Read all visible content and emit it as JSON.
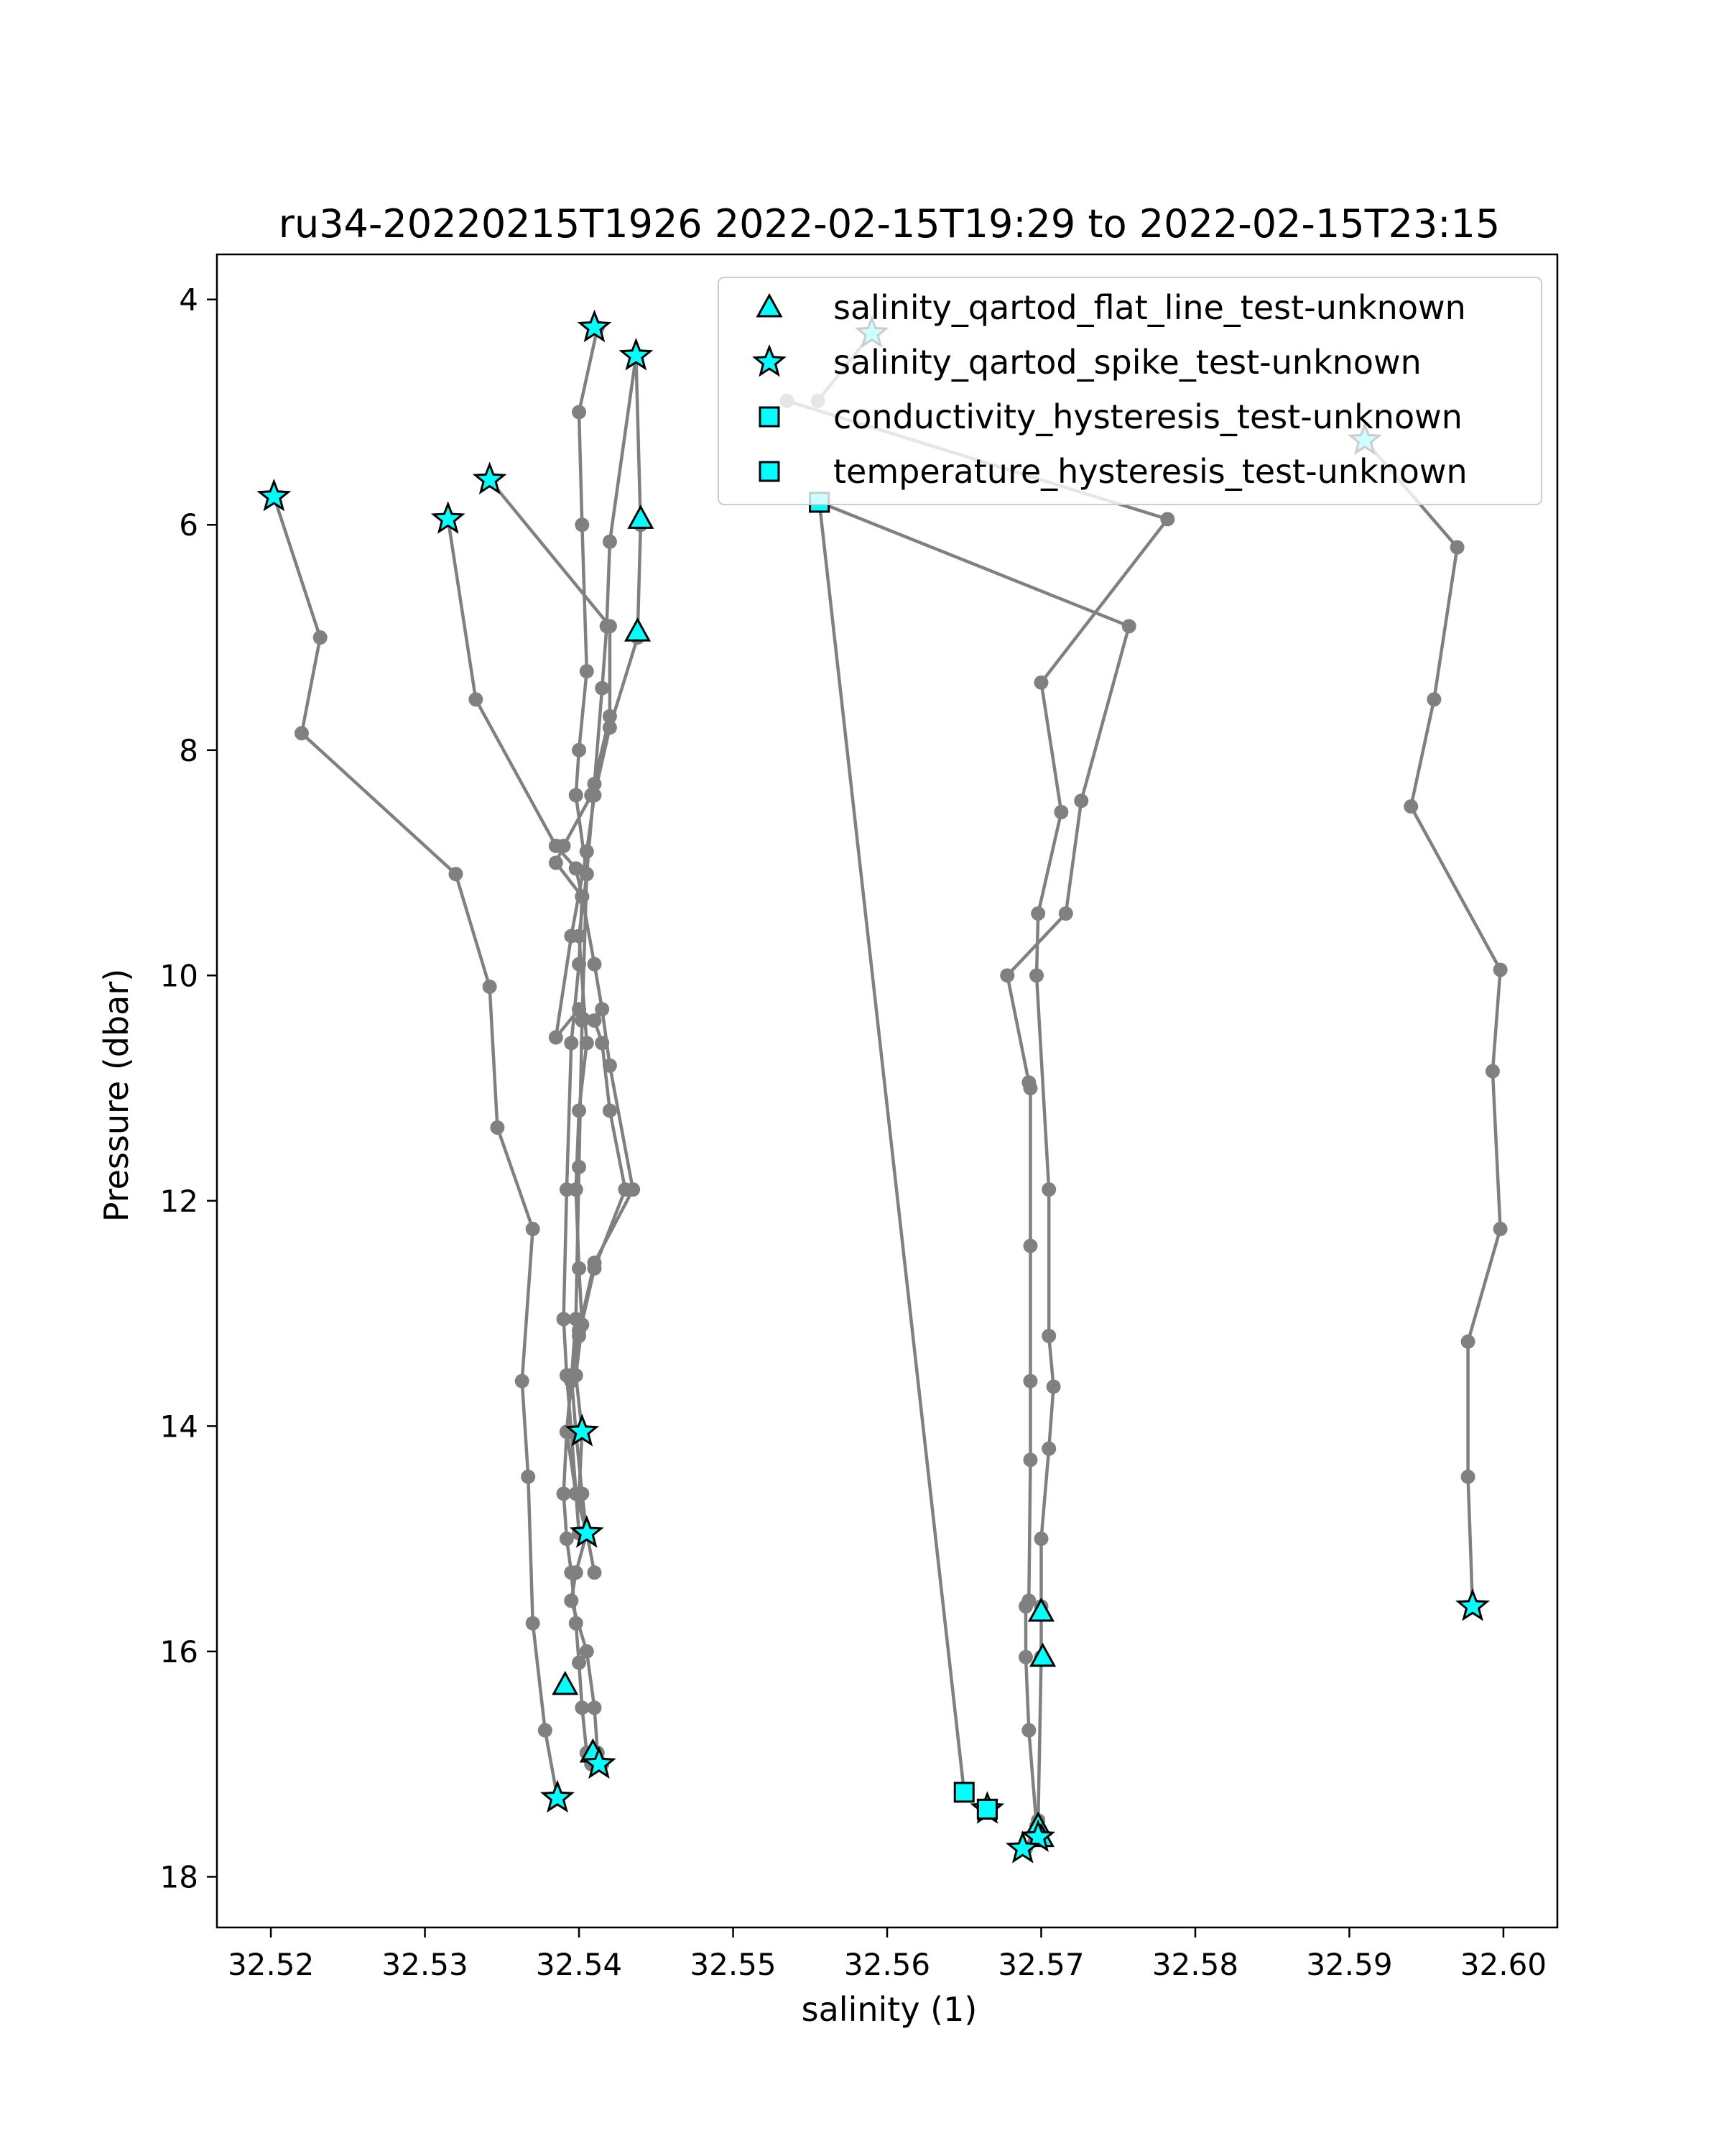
{
  "chart_data": {
    "type": "scatter",
    "title": "ru34-20220215T1926 2022-02-15T19:29 to 2022-02-15T23:15",
    "xlabel": "salinity (1)",
    "ylabel": "Pressure (dbar)",
    "xlim": [
      32.5165,
      32.6035
    ],
    "ylim": [
      18.45,
      3.6
    ],
    "y_inverted": true,
    "grid": false,
    "legend_position": "upper-right",
    "x_ticks": [
      "32.52",
      "32.53",
      "32.54",
      "32.55",
      "32.56",
      "32.57",
      "32.58",
      "32.59",
      "32.60"
    ],
    "y_ticks": [
      "4",
      "6",
      "8",
      "10",
      "12",
      "14",
      "16",
      "18"
    ],
    "profile_color": "#808080",
    "marker_color": "#00ffff",
    "profiles": [
      {
        "x": [
          32.5412,
          32.54,
          32.5402,
          32.5405,
          32.54,
          32.5398,
          32.5405,
          32.54,
          32.5405,
          32.54,
          32.5398,
          32.54,
          32.5402,
          32.5398,
          32.5402,
          32.54,
          32.5405,
          32.5398,
          32.5395,
          32.5405,
          32.541,
          32.5412,
          32.5415
        ],
        "y": [
          4.25,
          5.0,
          6.0,
          7.3,
          8.0,
          8.4,
          9.1,
          9.65,
          10.6,
          11.2,
          11.9,
          12.6,
          13.1,
          13.55,
          14.05,
          14.6,
          14.95,
          15.3,
          15.55,
          16.0,
          16.5,
          16.9,
          17.0
        ]
      },
      {
        "x": [
          32.5437,
          32.542,
          32.5418,
          32.5415,
          32.541,
          32.5405,
          32.5402,
          32.54,
          32.5398,
          32.5395,
          32.5392,
          32.539,
          32.5392,
          32.5395,
          32.5398,
          32.54,
          32.5402,
          32.5405,
          32.5408
        ],
        "y": [
          4.5,
          6.15,
          6.9,
          7.45,
          8.3,
          9.1,
          10.4,
          11.7,
          13.05,
          13.6,
          14.05,
          14.6,
          15.0,
          15.3,
          15.75,
          16.1,
          16.5,
          16.9,
          17.0
        ]
      },
      {
        "x": [
          32.5437,
          32.544,
          32.5438,
          32.542,
          32.541,
          32.5405,
          32.5395,
          32.5385,
          32.54,
          32.541,
          32.5415,
          32.542,
          32.543,
          32.541,
          32.54,
          32.5395,
          32.5392,
          32.5398,
          32.5405
        ],
        "y": [
          4.5,
          6.0,
          7.0,
          7.8,
          8.4,
          8.9,
          9.65,
          10.55,
          10.3,
          10.4,
          10.6,
          11.2,
          11.9,
          12.6,
          13.2,
          13.6,
          14.05,
          14.6,
          14.95
        ]
      },
      {
        "x": [
          32.5342,
          32.542,
          32.542,
          32.5408,
          32.539,
          32.5385,
          32.5402,
          32.541,
          32.5415,
          32.542,
          32.5435,
          32.541,
          32.54,
          32.5395,
          32.5398,
          32.5402,
          32.5405,
          32.541
        ],
        "y": [
          5.6,
          6.9,
          7.7,
          8.4,
          8.85,
          9.0,
          9.3,
          9.9,
          10.3,
          10.8,
          11.9,
          12.55,
          13.15,
          13.55,
          14.05,
          14.6,
          14.95,
          15.3
        ]
      },
      {
        "x": [
          32.5315,
          32.5333,
          32.5385,
          32.5398,
          32.5402,
          32.54,
          32.5395,
          32.5392,
          32.539,
          32.5392,
          32.5395,
          32.54
        ],
        "y": [
          5.95,
          7.55,
          8.85,
          9.05,
          9.3,
          9.9,
          10.6,
          11.9,
          13.05,
          13.55,
          14.05,
          14.95
        ]
      },
      {
        "x": [
          32.5202,
          32.5232,
          32.522,
          32.532,
          32.5342,
          32.5347,
          32.537,
          32.5363,
          32.5367,
          32.537,
          32.5378,
          32.5386
        ],
        "y": [
          5.75,
          7.0,
          7.85,
          9.1,
          10.1,
          11.35,
          12.25,
          13.6,
          14.45,
          15.75,
          16.7,
          17.3
        ]
      },
      {
        "x": [
          32.5556,
          32.565
        ],
        "y": [
          5.8,
          17.25
        ]
      },
      {
        "x": [
          32.5556,
          32.5757,
          32.5726,
          32.5716,
          32.5678,
          32.5692,
          32.5693,
          32.5693,
          32.5693,
          32.5693,
          32.5692,
          32.569,
          32.569,
          32.5692,
          32.5697,
          32.5697
        ],
        "y": [
          5.8,
          6.9,
          8.45,
          9.45,
          10.0,
          10.95,
          11.0,
          12.4,
          13.6,
          14.3,
          15.55,
          15.6,
          16.05,
          16.7,
          17.55,
          17.65
        ]
      },
      {
        "x": [
          32.5535,
          32.5782,
          32.57,
          32.5713,
          32.5698,
          32.5697,
          32.5705,
          32.5705,
          32.5708,
          32.5705,
          32.57,
          32.57,
          32.57,
          32.5698,
          32.569
        ],
        "y": [
          4.9,
          5.95,
          7.4,
          8.55,
          9.45,
          10.0,
          11.9,
          13.2,
          13.65,
          14.2,
          15.0,
          15.6,
          16.05,
          17.5,
          17.75
        ]
      },
      {
        "x": [
          32.559,
          32.5555
        ],
        "y": [
          4.3,
          4.9
        ]
      },
      {
        "x": [
          32.591,
          32.597,
          32.5955,
          32.594,
          32.5998,
          32.5993,
          32.5998,
          32.5977,
          32.5977,
          32.598
        ],
        "y": [
          5.25,
          6.2,
          7.55,
          8.5,
          9.95,
          10.85,
          12.25,
          13.25,
          14.45,
          15.6
        ]
      }
    ],
    "series": [
      {
        "name": "salinity_qartod_flat_line_test-unknown",
        "marker": "triangle",
        "x": [
          32.544,
          32.5438,
          32.5391,
          32.5409,
          32.57,
          32.5701,
          32.5698,
          32.57
        ],
        "y": [
          5.95,
          6.95,
          16.3,
          16.9,
          15.65,
          16.05,
          17.55,
          17.65
        ]
      },
      {
        "name": "salinity_qartod_spike_test-unknown",
        "marker": "star",
        "x": [
          32.541,
          32.559,
          32.5437,
          32.591,
          32.5342,
          32.5202,
          32.5315,
          32.5402,
          32.5405,
          32.5386,
          32.5413,
          32.5665,
          32.5698,
          32.5688,
          32.598
        ],
        "y": [
          4.25,
          4.3,
          4.5,
          5.25,
          5.6,
          5.75,
          5.95,
          14.05,
          14.95,
          17.3,
          17.0,
          17.4,
          17.65,
          17.75,
          15.6
        ]
      },
      {
        "name": "conductivity_hysteresis_test-unknown",
        "marker": "square",
        "x": [
          32.5556,
          32.565,
          32.5665
        ],
        "y": [
          5.8,
          17.25,
          17.4
        ]
      },
      {
        "name": "temperature_hysteresis_test-unknown",
        "marker": "square",
        "x": [
          32.5556,
          32.5665
        ],
        "y": [
          5.8,
          17.4
        ]
      }
    ]
  }
}
